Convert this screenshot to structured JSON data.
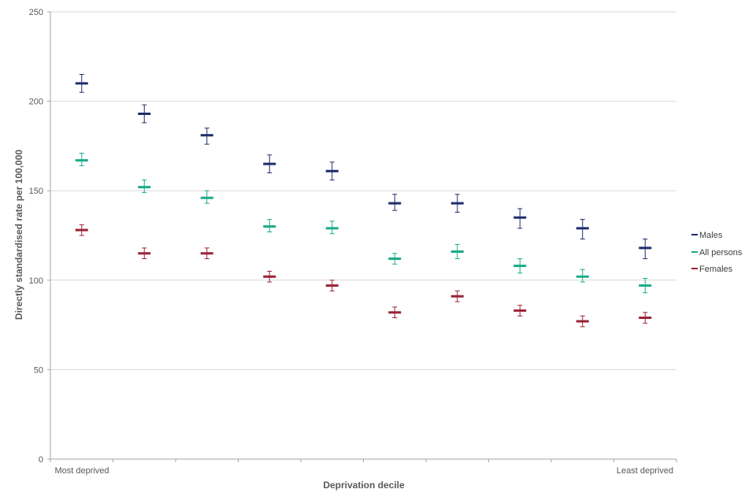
{
  "chart_data": {
    "type": "scatter",
    "title": "",
    "xlabel": "Deprivation decile",
    "ylabel": "Directly standardised rate per 100,000",
    "x_tick_labels": {
      "first": "Most deprived",
      "last": "Least deprived"
    },
    "categories": [
      1,
      2,
      3,
      4,
      5,
      6,
      7,
      8,
      9,
      10
    ],
    "ylim": [
      0,
      250
    ],
    "yticks": [
      0,
      50,
      100,
      150,
      200,
      250
    ],
    "grid": "horizontal",
    "legend_position": "right",
    "error_bars": true,
    "series": [
      {
        "name": "Males",
        "color": "#1f2d6b",
        "values": [
          210,
          193,
          181,
          165,
          161,
          143,
          143,
          135,
          129,
          118
        ],
        "lower": [
          205,
          188,
          176,
          160,
          156,
          139,
          138,
          129,
          123,
          112
        ],
        "upper": [
          215,
          198,
          185,
          170,
          166,
          148,
          148,
          140,
          134,
          123
        ]
      },
      {
        "name": "All persons",
        "color": "#1aab8a",
        "values": [
          167,
          152,
          146,
          130,
          129,
          112,
          116,
          108,
          102,
          97
        ],
        "lower": [
          164,
          149,
          143,
          127,
          126,
          109,
          112,
          104,
          99,
          93
        ],
        "upper": [
          171,
          156,
          150,
          134,
          133,
          115,
          120,
          112,
          106,
          101
        ]
      },
      {
        "name": "Females",
        "color": "#9b2335",
        "values": [
          128,
          115,
          115,
          102,
          97,
          82,
          91,
          83,
          77,
          79
        ],
        "lower": [
          125,
          112,
          112,
          99,
          94,
          79,
          88,
          80,
          74,
          76
        ],
        "upper": [
          131,
          118,
          118,
          105,
          100,
          85,
          94,
          86,
          80,
          82
        ]
      }
    ]
  }
}
